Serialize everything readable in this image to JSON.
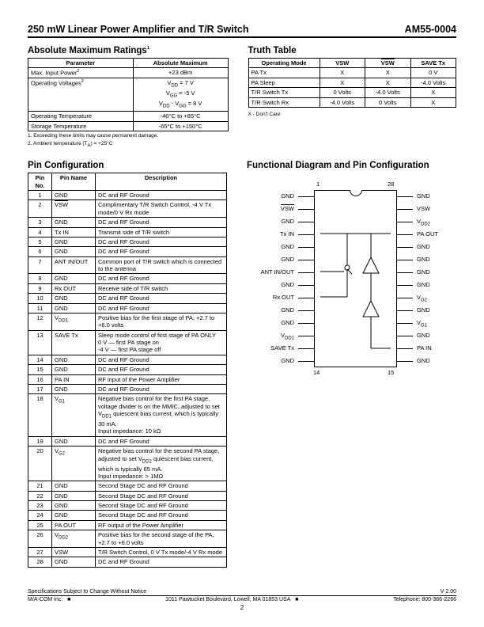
{
  "header": {
    "left": "250 mW Linear Power Amplifier and T/R Switch",
    "right": "AM55-0004"
  },
  "abs_max": {
    "title": "Absolute Maximum Ratings",
    "sup": "1",
    "cols": [
      "Parameter",
      "Absolute Maximum"
    ],
    "rows": [
      {
        "param": "Max. Input Power",
        "psup": "2",
        "val": "+23 dBm"
      },
      {
        "param": "Operating Voltages",
        "psup": "2",
        "val": "V_DD = 7 V\nV_GG = -5 V\nV_DD - V_GG = 8 V"
      },
      {
        "param": "Operating Temperature",
        "psup": "",
        "val": "-40°C to +85°C"
      },
      {
        "param": "Storage Temperature",
        "psup": "",
        "val": "-65°C to +150°C"
      }
    ],
    "footnotes": [
      "1. Exceeding these limits may cause permanent damage.",
      "2. Ambient temperature (T_A) = +25°C"
    ]
  },
  "truth": {
    "title": "Truth Table",
    "cols": [
      "Operating Mode",
      "VSW",
      "VSW_bar",
      "SAVE Tx"
    ],
    "rows": [
      [
        "PA Tx",
        "X",
        "X",
        "0 V"
      ],
      [
        "PA Sleep",
        "X",
        "X",
        "-4.0 Volts"
      ],
      [
        "T/R Switch Tx",
        "0 Volts",
        "-4.0 Volts",
        "X"
      ],
      [
        "T/R Switch Rx",
        "-4.0 Volts",
        "0 Volts",
        "X"
      ]
    ],
    "footnote": "X - Don't Care"
  },
  "pin_config": {
    "title": "Pin Configuration",
    "cols": [
      "Pin No.",
      "Pin Name",
      "Description"
    ],
    "rows": [
      [
        "1",
        "GND",
        "DC and RF Ground"
      ],
      [
        "2",
        "VSW_bar",
        "Complimentary T/R Switch Control, -4 V Tx mode/0 V Rx mode"
      ],
      [
        "3",
        "GND",
        "DC and RF Ground"
      ],
      [
        "4",
        "Tx IN",
        "Transmit side of T/R switch"
      ],
      [
        "5",
        "GND",
        "DC and RF Ground"
      ],
      [
        "6",
        "GND",
        "DC and RF Ground"
      ],
      [
        "7",
        "ANT IN/OUT",
        "Common port of T/R switch which is connected to the antenna"
      ],
      [
        "8",
        "GND",
        "DC and RF Ground"
      ],
      [
        "9",
        "Rx OUT",
        "Receive side of T/R switch"
      ],
      [
        "10",
        "GND",
        "DC and RF Ground"
      ],
      [
        "11",
        "GND",
        "DC and RF Ground"
      ],
      [
        "12",
        "V_DD1",
        "Positive bias for the first stage of PA, +2.7 to +6.0 volts"
      ],
      [
        "13",
        "SAVE Tx",
        "Sleep mode control of first stage of PA ONLY\n0 V — first PA stage on\n-4 V — first PA stage off"
      ],
      [
        "14",
        "GND",
        "DC and RF Ground"
      ],
      [
        "15",
        "GND",
        "DC and RF Ground"
      ],
      [
        "16",
        "PA IN",
        "RF input of the Power Amplifier"
      ],
      [
        "17",
        "GND",
        "DC and RF Ground"
      ],
      [
        "18",
        "V_G1",
        "Negative bias control for the first PA stage, voltage divider is on the MMIC, adjusted to set V_DD1 quiescent bias current, which is typically 30 mA.\nInput impedance: 10 kΩ"
      ],
      [
        "19",
        "GND",
        "DC and RF Ground"
      ],
      [
        "20",
        "V_G2",
        "Negative bias control for the second PA stage, adjusted to set V_DD2 quiescent bias current, which is typically 65 mA.\nInput impedance: > 1MΩ"
      ],
      [
        "21",
        "GND",
        "Second Stage DC and RF Ground"
      ],
      [
        "22",
        "GND",
        "Second Stage DC and RF Ground"
      ],
      [
        "23",
        "GND",
        "Second Stage DC and RF Ground"
      ],
      [
        "24",
        "GND",
        "Second Stage DC and RF Ground"
      ],
      [
        "25",
        "PA OUT",
        "RF output of the Power Amplifier"
      ],
      [
        "26",
        "V_DD2",
        "Positive bias for the second stage of the PA, +2.7 to +6.0 volts"
      ],
      [
        "27",
        "VSW",
        "T/R Switch Control, 0 V Tx mode/-4 V Rx mode"
      ],
      [
        "28",
        "GND",
        "DC and RF Ground"
      ]
    ]
  },
  "diagram": {
    "title": "Functional Diagram and Pin Configuration",
    "left_pins": [
      "GND",
      "VSW_bar",
      "GND",
      "Tx IN",
      "GND",
      "GND",
      "ANT IN/OUT",
      "GND",
      "Rx OUT",
      "GND",
      "GND",
      "V_DD1",
      "SAVE Tx",
      "GND"
    ],
    "right_pins": [
      "GND",
      "VSW",
      "V_DD2",
      "PA OUT",
      "GND",
      "GND",
      "GND",
      "GND",
      "V_G2",
      "GND",
      "V_G1",
      "GND",
      "PA IN",
      "GND"
    ],
    "top_left_num": "1",
    "top_right_num": "28",
    "bot_left_num": "14",
    "bot_right_num": "15"
  },
  "footer": {
    "spec": "Specifications Subject to Change Without Notice",
    "version": "V 2.00",
    "company": "M/A-COM Inc.",
    "address": "1011 Pawtucket Boulevard,  Lowell, MA  01853  USA",
    "tel": "Telephone: 800-366-2266",
    "page": "2"
  }
}
